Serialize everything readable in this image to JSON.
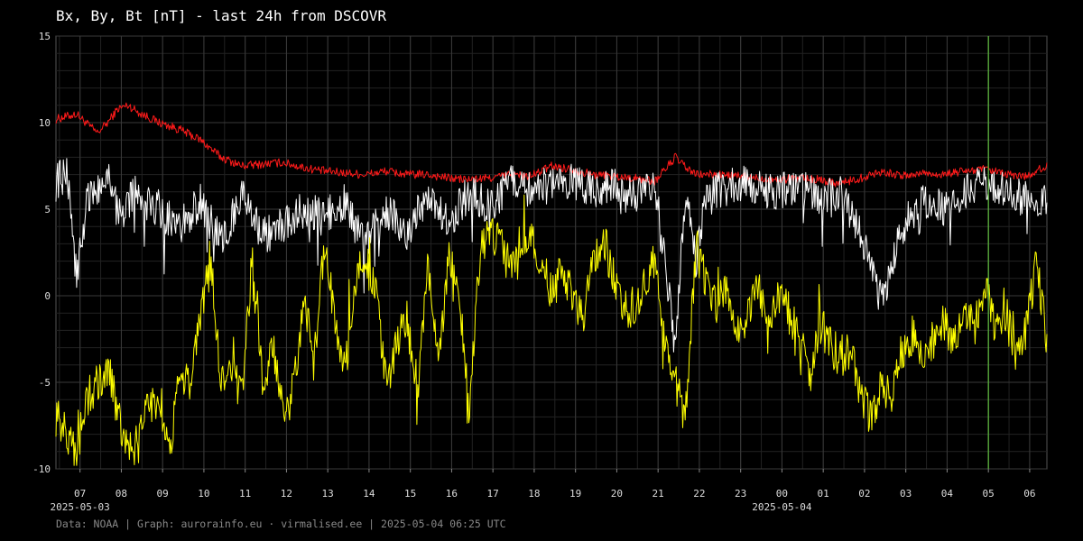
{
  "title": "Bx, By, Bt [nT] - last 24h from DSCOVR",
  "footer": "Data: NOAA | Graph: aurorainfo.eu · virmalised.ee | 2025-05-04 06:25 UTC",
  "colors": {
    "background": "#000000",
    "grid": "#3a3a3a",
    "Bt": "#ff1a1a",
    "Bx": "#ffffff",
    "By": "#ffff00",
    "now_marker": "#5fbf3f"
  },
  "chart_data": {
    "type": "line",
    "title": "Bx, By, Bt [nT] - last 24h from DSCOVR",
    "xlabel": "",
    "ylabel": "",
    "ylim": [
      -10,
      15
    ],
    "yticks": [
      -10,
      -5,
      0,
      5,
      10,
      15
    ],
    "x_unit": "hours (UTC) since 2025-05-03 06:25",
    "xlim": [
      0,
      24
    ],
    "xticks": [
      {
        "label": "07",
        "x": 0.583
      },
      {
        "label": "08",
        "x": 1.583
      },
      {
        "label": "09",
        "x": 2.583
      },
      {
        "label": "10",
        "x": 3.583
      },
      {
        "label": "11",
        "x": 4.583
      },
      {
        "label": "12",
        "x": 5.583
      },
      {
        "label": "13",
        "x": 6.583
      },
      {
        "label": "14",
        "x": 7.583
      },
      {
        "label": "15",
        "x": 8.583
      },
      {
        "label": "16",
        "x": 9.583
      },
      {
        "label": "17",
        "x": 10.583
      },
      {
        "label": "18",
        "x": 11.583
      },
      {
        "label": "19",
        "x": 12.583
      },
      {
        "label": "20",
        "x": 13.583
      },
      {
        "label": "21",
        "x": 14.583
      },
      {
        "label": "22",
        "x": 15.583
      },
      {
        "label": "23",
        "x": 16.583
      },
      {
        "label": "00",
        "x": 17.583
      },
      {
        "label": "01",
        "x": 18.583
      },
      {
        "label": "02",
        "x": 19.583
      },
      {
        "label": "03",
        "x": 20.583
      },
      {
        "label": "04",
        "x": 21.583
      },
      {
        "label": "05",
        "x": 22.583
      },
      {
        "label": "06",
        "x": 23.583
      }
    ],
    "date_labels": [
      {
        "label": "2025-05-03",
        "x": 0.583
      },
      {
        "label": "2025-05-04",
        "x": 17.583
      }
    ],
    "now_marker_x": 22.583,
    "grid": true,
    "series": [
      {
        "name": "Bt",
        "color": "#ff1a1a",
        "x": [
          0,
          0.5,
          1,
          1.25,
          1.5,
          1.75,
          2,
          2.5,
          3,
          3.5,
          4,
          4.5,
          5,
          5.5,
          6,
          6.5,
          7,
          7.5,
          8,
          8.5,
          9,
          9.5,
          10,
          10.5,
          11,
          11.5,
          12,
          12.5,
          13,
          13.5,
          14,
          14.5,
          15,
          15.25,
          15.5,
          16,
          16.5,
          17,
          17.5,
          18,
          18.5,
          19,
          19.5,
          20,
          20.5,
          21,
          21.5,
          22,
          22.5,
          23,
          23.5,
          24
        ],
        "y": [
          10.2,
          10.5,
          9.4,
          10.0,
          10.8,
          11.0,
          10.6,
          10.0,
          9.6,
          9.0,
          8.0,
          7.5,
          7.6,
          7.7,
          7.4,
          7.2,
          7.1,
          7.0,
          7.2,
          7.0,
          7.0,
          6.8,
          6.7,
          6.8,
          7.0,
          6.9,
          7.5,
          7.3,
          7.0,
          6.9,
          6.8,
          6.6,
          8.0,
          7.4,
          7.0,
          7.0,
          6.9,
          6.8,
          6.7,
          6.8,
          6.7,
          6.5,
          6.8,
          7.2,
          6.9,
          7.1,
          7.0,
          7.2,
          7.3,
          7.0,
          6.9,
          7.5
        ]
      },
      {
        "name": "Bx",
        "color": "#ffffff",
        "x": [
          0,
          0.25,
          0.5,
          0.75,
          1,
          1.25,
          1.5,
          1.75,
          2,
          2.5,
          3,
          3.5,
          4,
          4.5,
          5,
          5.5,
          6,
          6.5,
          7,
          7.5,
          8,
          8.5,
          9,
          9.5,
          10,
          10.5,
          11,
          11.5,
          12,
          12.5,
          13,
          13.5,
          14,
          14.5,
          14.75,
          15,
          15.25,
          15.5,
          15.75,
          16,
          16.5,
          17,
          17.5,
          18,
          18.5,
          19,
          19.5,
          20,
          20.5,
          21,
          21.5,
          22,
          22.5,
          23,
          23.5,
          24
        ],
        "y": [
          6.5,
          7.5,
          1.0,
          5.5,
          6.0,
          7.5,
          4.5,
          5.5,
          6.0,
          5.0,
          4.0,
          5.5,
          3.0,
          6.0,
          3.5,
          4.0,
          5.0,
          4.5,
          5.5,
          3.0,
          5.0,
          3.5,
          6.0,
          4.0,
          6.0,
          5.0,
          6.5,
          6.0,
          6.5,
          6.5,
          6.0,
          6.3,
          5.8,
          6.5,
          2.0,
          -3.0,
          6.0,
          2.0,
          5.5,
          6.0,
          6.5,
          6.2,
          6.0,
          6.3,
          5.5,
          6.0,
          3.5,
          -0.5,
          4.0,
          5.5,
          5.0,
          6.0,
          6.5,
          6.2,
          5.5,
          5.5
        ]
      },
      {
        "name": "By",
        "color": "#ffff00",
        "x": [
          0,
          0.25,
          0.5,
          0.75,
          1,
          1.25,
          1.5,
          1.75,
          2,
          2.25,
          2.5,
          2.75,
          3,
          3.25,
          3.5,
          3.75,
          4,
          4.25,
          4.5,
          4.75,
          5,
          5.25,
          5.5,
          5.75,
          6,
          6.25,
          6.5,
          6.75,
          7,
          7.25,
          7.5,
          7.75,
          8,
          8.25,
          8.5,
          8.75,
          9,
          9.25,
          9.5,
          9.75,
          10,
          10.25,
          10.5,
          10.75,
          11,
          11.25,
          11.5,
          11.75,
          12,
          12.25,
          12.5,
          12.75,
          13,
          13.25,
          13.5,
          13.75,
          14,
          14.25,
          14.5,
          14.75,
          15,
          15.25,
          15.5,
          15.75,
          16,
          16.25,
          16.5,
          16.75,
          17,
          17.25,
          17.5,
          17.75,
          18,
          18.25,
          18.5,
          18.75,
          19,
          19.25,
          19.5,
          19.75,
          20,
          20.25,
          20.5,
          20.75,
          21,
          21.25,
          21.5,
          21.75,
          22,
          22.25,
          22.5,
          22.75,
          23,
          23.25,
          23.5,
          23.75,
          24
        ],
        "y": [
          -7.0,
          -8.0,
          -9.0,
          -6.0,
          -5.0,
          -4.0,
          -7.0,
          -9.0,
          -8.5,
          -6.0,
          -7.0,
          -9.0,
          -4.0,
          -5.5,
          -1.0,
          2.0,
          -5.0,
          -4.0,
          -6.0,
          2.0,
          -5.0,
          -3.0,
          -7.0,
          -5.5,
          0.0,
          -4.0,
          3.0,
          -1.0,
          -4.5,
          1.0,
          2.0,
          0.0,
          -5.0,
          -3.0,
          -1.0,
          -6.0,
          2.0,
          -4.0,
          2.0,
          0.5,
          -6.5,
          2.0,
          4.0,
          3.0,
          1.5,
          3.0,
          3.5,
          2.0,
          0.0,
          1.5,
          0.0,
          -1.5,
          2.0,
          3.5,
          1.0,
          -1.0,
          -0.5,
          0.5,
          2.0,
          -2.5,
          -5.0,
          -7.0,
          3.0,
          0.5,
          -0.5,
          0.5,
          -2.0,
          -1.0,
          0.5,
          -1.5,
          0.0,
          -1.0,
          -2.5,
          -4.5,
          -1.5,
          -3.0,
          -3.5,
          -3.0,
          -6.0,
          -7.0,
          -5.0,
          -6.0,
          -3.0,
          -2.5,
          -3.5,
          -2.5,
          -1.5,
          -3.0,
          -1.0,
          -2.0,
          1.0,
          -2.0,
          -1.0,
          -3.5,
          -2.0,
          2.0,
          -2.5
        ]
      }
    ]
  }
}
